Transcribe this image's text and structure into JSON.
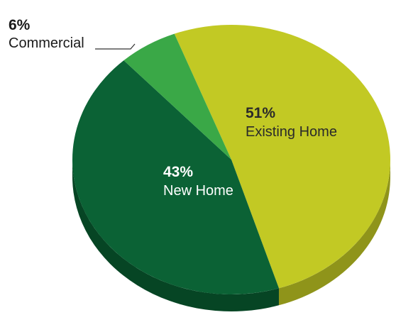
{
  "chart_data": {
    "type": "pie",
    "style": "3d",
    "slices": [
      {
        "label": "Existing Home",
        "value": 51,
        "display": "51%",
        "color": "#c2c924",
        "side_color": "#8f941a",
        "text_color": "#2a2a2a"
      },
      {
        "label": "New Home",
        "value": 43,
        "display": "43%",
        "color": "#0b6235",
        "side_color": "#064524",
        "text_color": "#ffffff"
      },
      {
        "label": "Commercial",
        "value": 6,
        "display": "6%",
        "color": "#3aa847",
        "side_color": "#287a33",
        "text_color": "#1a1a1a"
      }
    ]
  }
}
